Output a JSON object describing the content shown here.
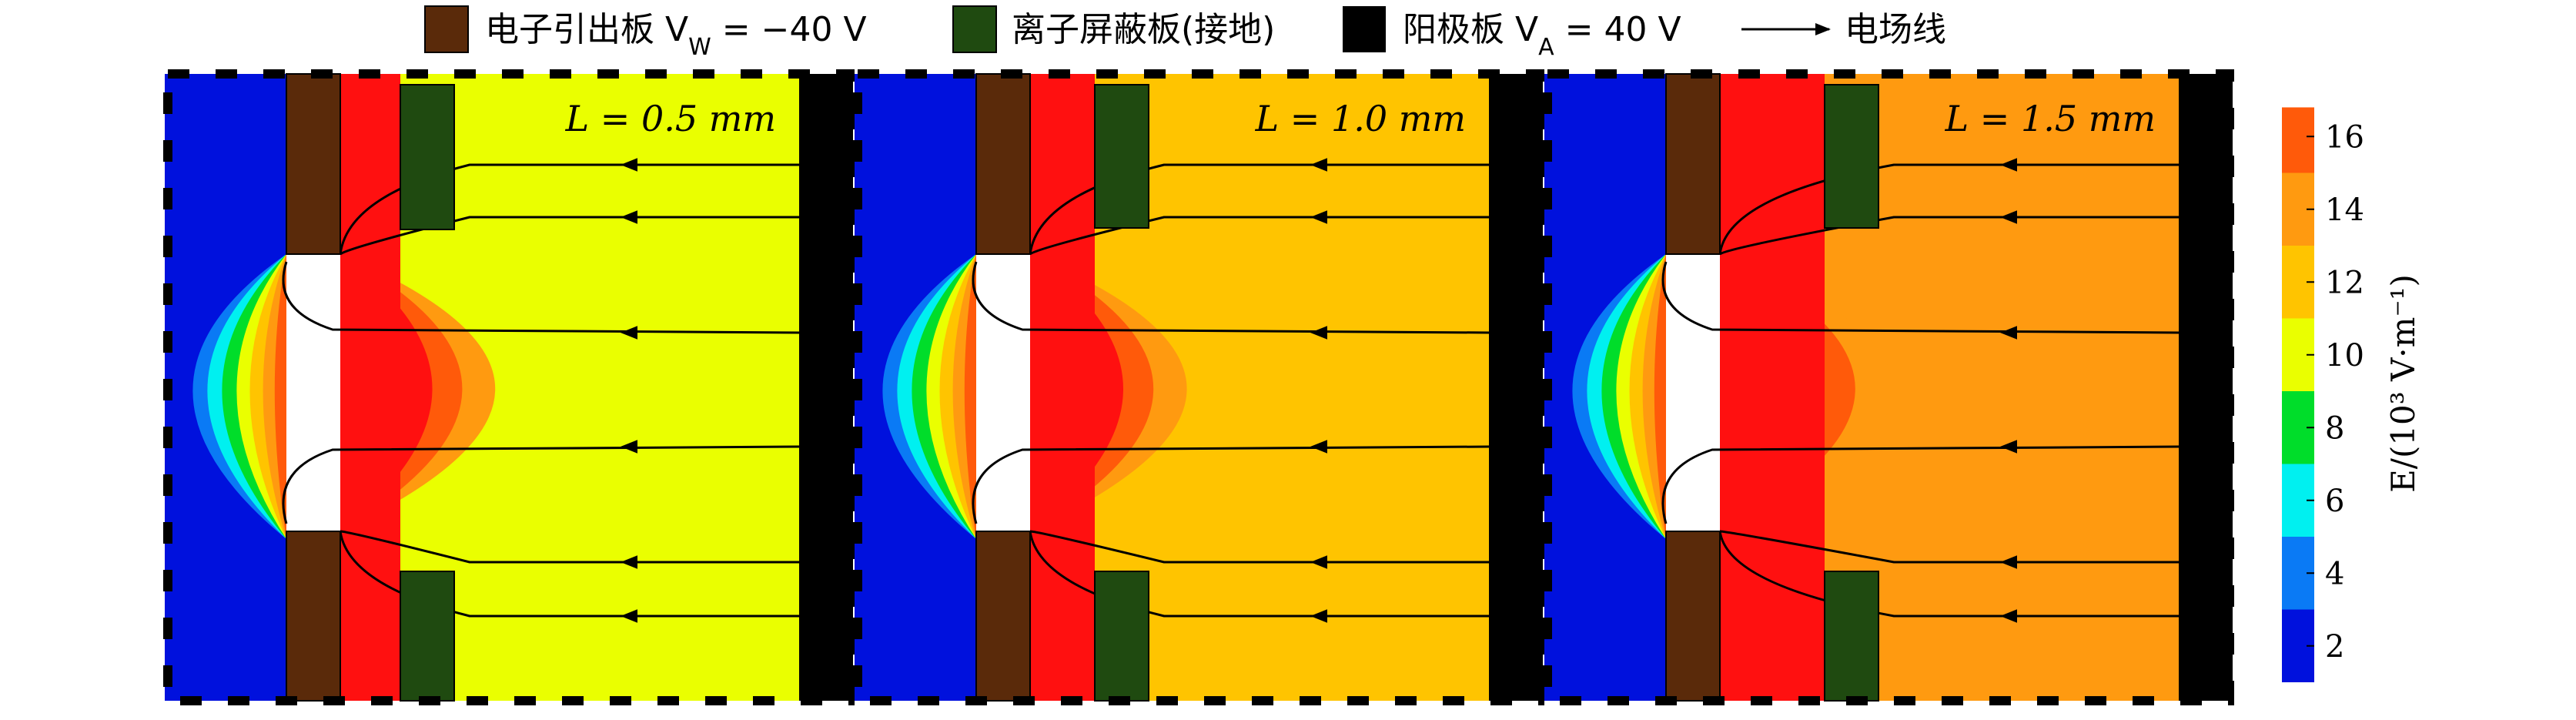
{
  "chart_data": {
    "type": "heatmap",
    "legend": {
      "electrode": "电子引出板 V",
      "electrode_sub": "W",
      "electrode_value": " = −40 V",
      "shield": "离子屏蔽板(接地)",
      "anode": "阳极板 V",
      "anode_sub": "A",
      "anode_value": " = 40 V",
      "field_line": "电场线"
    },
    "colors": {
      "electrode": "#5a2a0a",
      "shield": "#1f4a10",
      "anode": "#000000",
      "levels": [
        "#0011dd",
        "#0a7af5",
        "#00f0f0",
        "#00dd2a",
        "#eaff00",
        "#ffc400",
        "#ff9a10",
        "#ff5a0a",
        "#ff1010"
      ]
    },
    "colorbar": {
      "title": "E/(10³ V·m⁻¹)",
      "ticks": [
        "2",
        "4",
        "6",
        "8",
        "10",
        "12",
        "14",
        "16"
      ],
      "range": [
        1,
        17
      ],
      "boundaries": [
        1,
        3,
        5,
        7,
        9,
        11,
        13,
        15,
        16.8
      ]
    },
    "panels": [
      {
        "label": "L = 0.5 mm",
        "L_mm": 0.5,
        "outer_field_level": 10.5
      },
      {
        "label": "L = 1.0 mm",
        "L_mm": 1.0,
        "outer_field_level": 11
      },
      {
        "label": "L = 1.5 mm",
        "L_mm": 1.5,
        "outer_field_level": 13
      }
    ]
  }
}
